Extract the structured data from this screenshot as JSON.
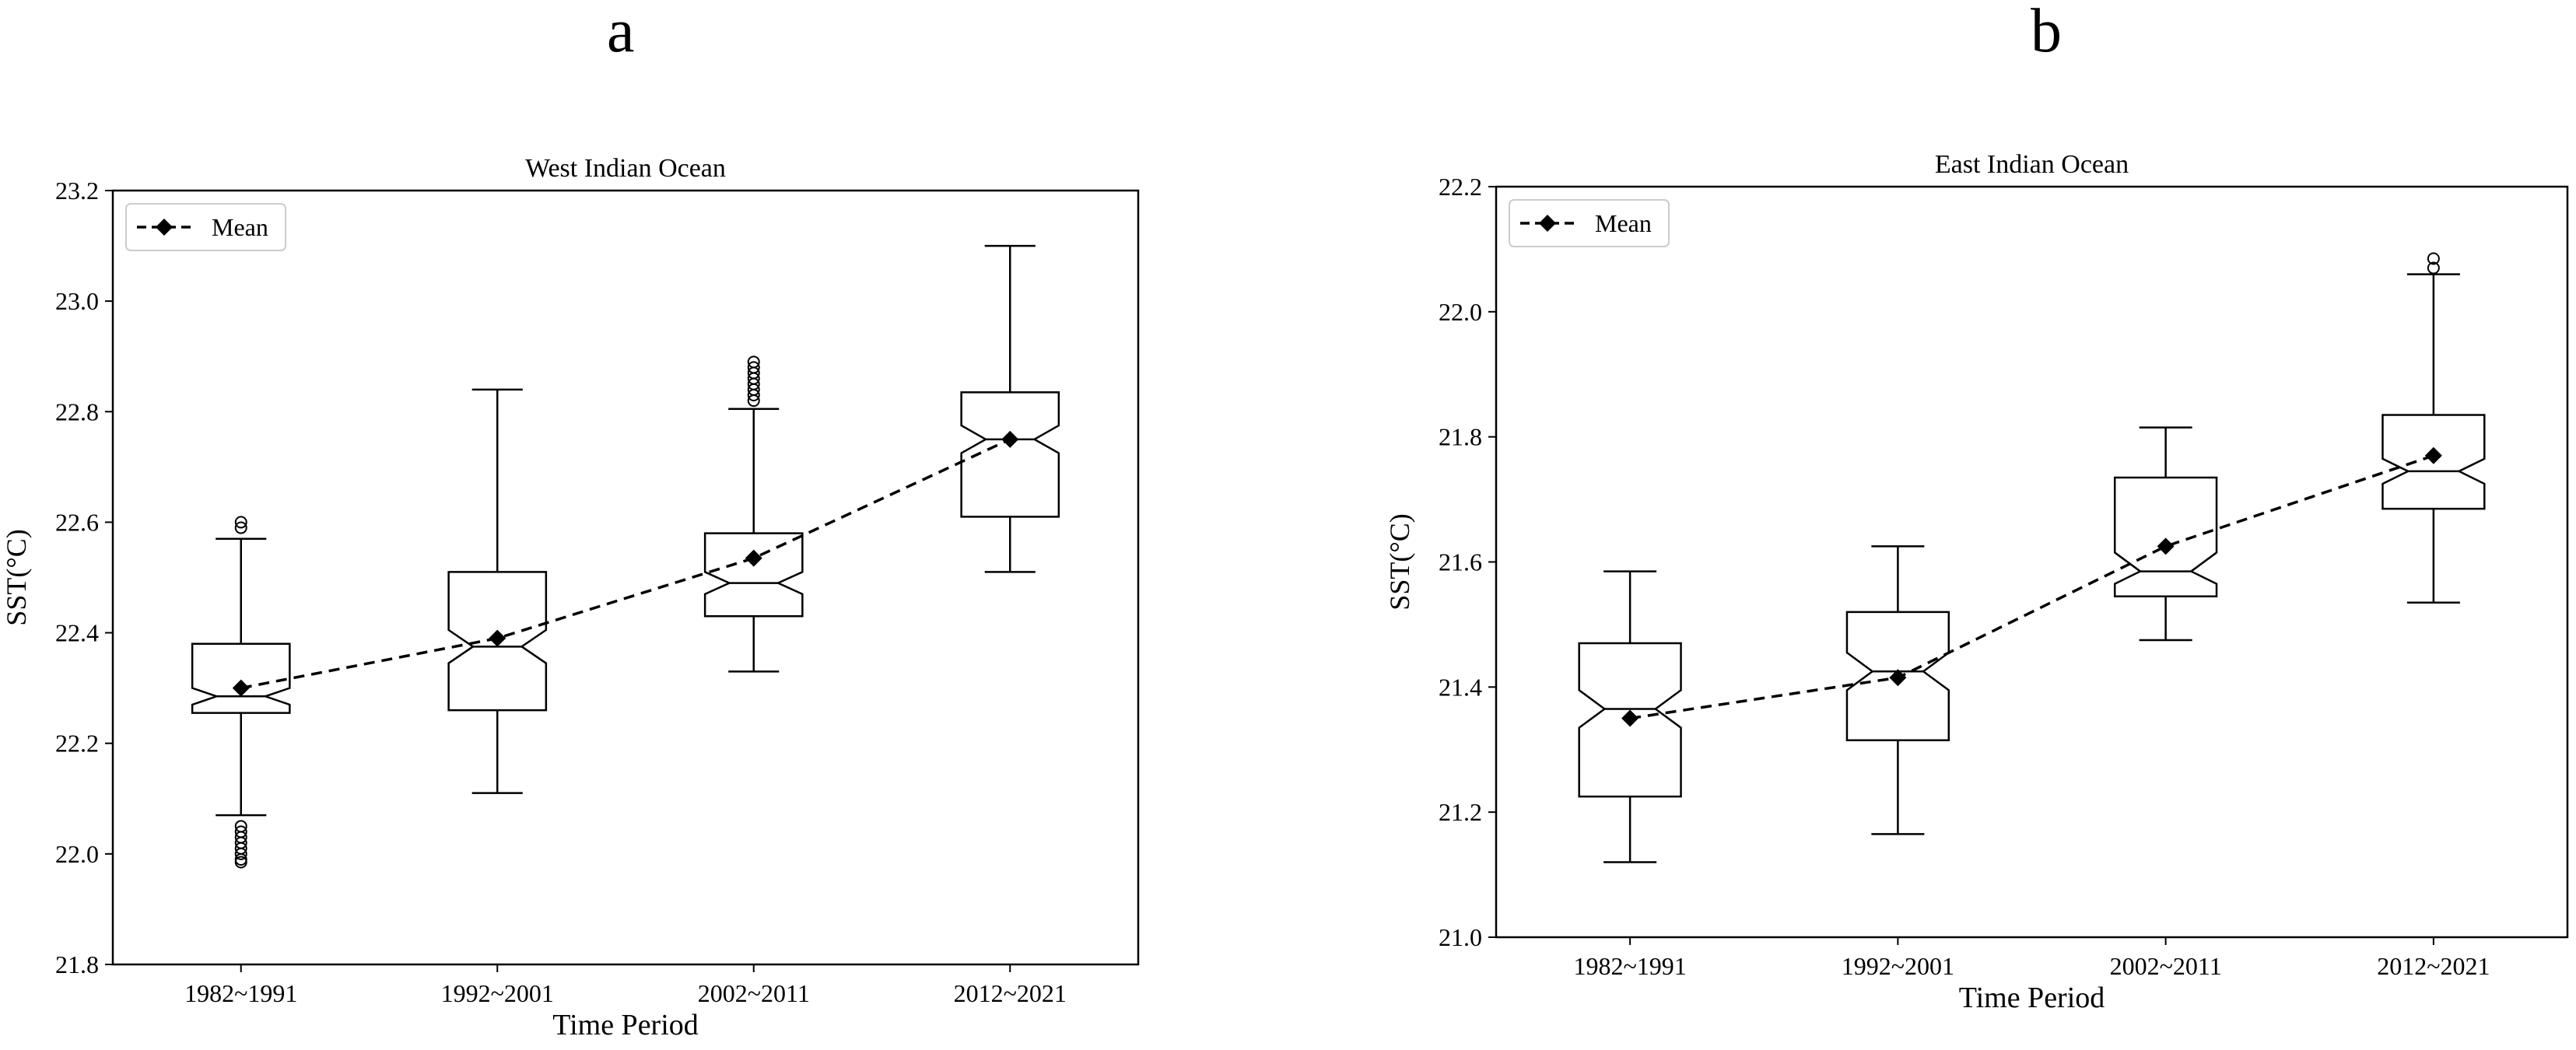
{
  "panels": [
    "a",
    "b"
  ],
  "chart_data": [
    {
      "type": "box",
      "panel": "a",
      "title": "West Indian Ocean",
      "xlabel": "Time Period",
      "ylabel": "SST(°C)",
      "ylim": [
        21.8,
        23.2
      ],
      "yticks": [
        "21.8",
        "22.0",
        "22.2",
        "22.4",
        "22.6",
        "22.8",
        "23.0",
        "23.2"
      ],
      "categories": [
        "1982~1991",
        "1992~2001",
        "2002~2011",
        "2012~2021"
      ],
      "legend": {
        "label": "Mean",
        "placement": "top-left"
      },
      "boxes": [
        {
          "whisker_low": 22.07,
          "q1": 22.255,
          "median": 22.285,
          "q3": 22.38,
          "whisker_high": 22.57,
          "notch_low": 22.27,
          "notch_high": 22.3,
          "outliers": [
            22.59,
            22.6,
            22.05,
            22.04,
            22.03,
            22.02,
            22.01,
            22.0,
            21.99,
            21.985
          ]
        },
        {
          "whisker_low": 22.11,
          "q1": 22.26,
          "median": 22.375,
          "q3": 22.51,
          "whisker_high": 22.84,
          "notch_low": 22.345,
          "notch_high": 22.405,
          "outliers": []
        },
        {
          "whisker_low": 22.33,
          "q1": 22.43,
          "median": 22.49,
          "q3": 22.58,
          "whisker_high": 22.805,
          "notch_low": 22.47,
          "notch_high": 22.51,
          "outliers": [
            22.82,
            22.83,
            22.84,
            22.85,
            22.86,
            22.87,
            22.88,
            22.89
          ]
        },
        {
          "whisker_low": 22.51,
          "q1": 22.61,
          "median": 22.75,
          "q3": 22.835,
          "whisker_high": 23.1,
          "notch_low": 22.725,
          "notch_high": 22.775,
          "outliers": []
        }
      ],
      "means": [
        22.3,
        22.39,
        22.535,
        22.75
      ]
    },
    {
      "type": "box",
      "panel": "b",
      "title": "East Indian Ocean",
      "xlabel": "Time Period",
      "ylabel": "SST(°C)",
      "ylim": [
        21.0,
        22.2
      ],
      "yticks": [
        "21.0",
        "21.2",
        "21.4",
        "21.6",
        "21.8",
        "22.0",
        "22.2"
      ],
      "categories": [
        "1982~1991",
        "1992~2001",
        "2002~2011",
        "2012~2021"
      ],
      "legend": {
        "label": "Mean",
        "placement": "top-left"
      },
      "boxes": [
        {
          "whisker_low": 21.12,
          "q1": 21.225,
          "median": 21.365,
          "q3": 21.47,
          "whisker_high": 21.585,
          "notch_low": 21.335,
          "notch_high": 21.395,
          "outliers": []
        },
        {
          "whisker_low": 21.165,
          "q1": 21.315,
          "median": 21.425,
          "q3": 21.52,
          "whisker_high": 21.625,
          "notch_low": 21.395,
          "notch_high": 21.455,
          "outliers": []
        },
        {
          "whisker_low": 21.475,
          "q1": 21.545,
          "median": 21.585,
          "q3": 21.735,
          "whisker_high": 21.815,
          "notch_low": 21.565,
          "notch_high": 21.615,
          "outliers": []
        },
        {
          "whisker_low": 21.535,
          "q1": 21.685,
          "median": 21.745,
          "q3": 21.835,
          "whisker_high": 22.06,
          "notch_low": 21.725,
          "notch_high": 21.765,
          "outliers": [
            22.07,
            22.085
          ]
        }
      ],
      "means": [
        21.35,
        21.415,
        21.625,
        21.77
      ]
    }
  ]
}
